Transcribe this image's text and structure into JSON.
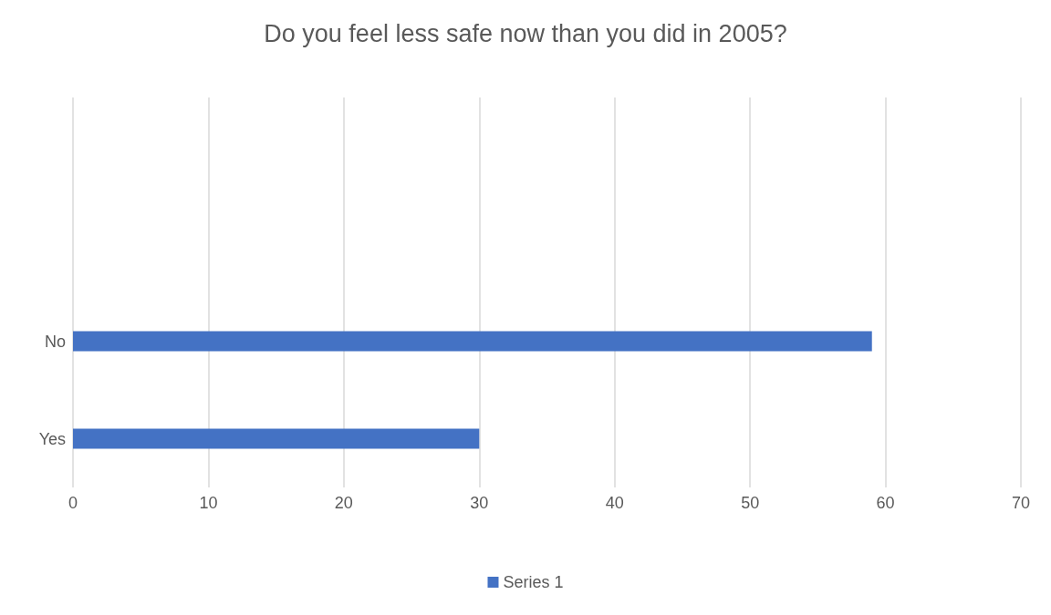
{
  "chart_data": {
    "type": "bar",
    "orientation": "horizontal",
    "title": "Do you feel less safe now than you did in 2005?",
    "categories": [
      null,
      null,
      "No",
      "Yes"
    ],
    "series": [
      {
        "name": "Series 1",
        "color": "#4472c4",
        "values": [
          null,
          null,
          59,
          30
        ]
      }
    ],
    "xlim": [
      0,
      70
    ],
    "xticks": [
      0,
      10,
      20,
      30,
      40,
      50,
      60,
      70
    ],
    "grid": "x",
    "legend": "bottom"
  }
}
